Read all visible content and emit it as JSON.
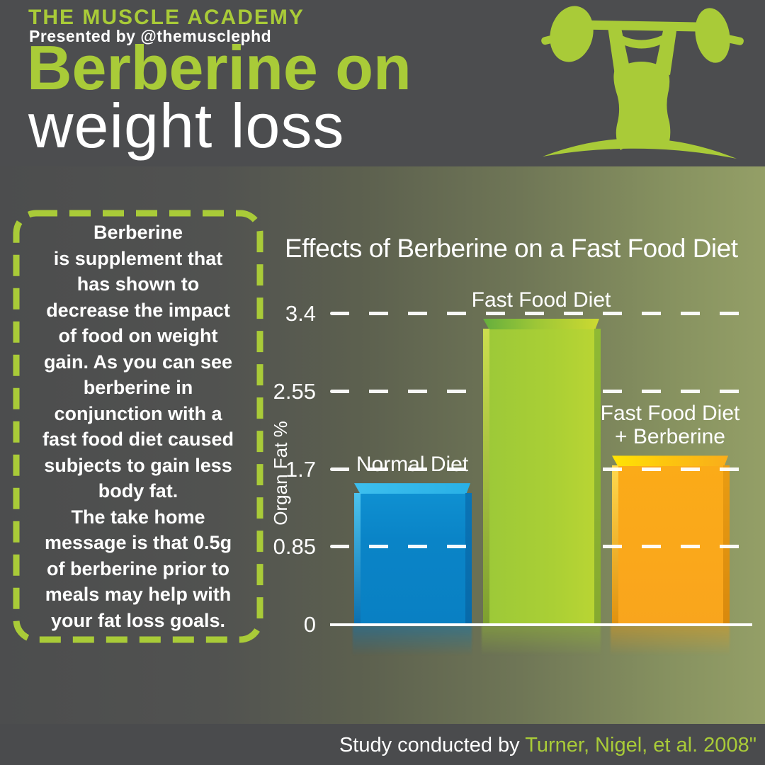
{
  "colors": {
    "accent": "#a9cb38",
    "background": "#4c4d4f",
    "panel_gradient_right": "#949f67",
    "text": "#ffffff",
    "bar_blue": "#0b85c8",
    "bar_green": "#aacf35",
    "bar_orange": "#f9a71c"
  },
  "header": {
    "brand": "THE MUSCLE ACADEMY",
    "presented_by": "Presented by @themusclephd",
    "title_line1": "Berberine on",
    "title_line2": "weight loss",
    "logo_icon": "weightlifter-icon"
  },
  "info_box": {
    "body": "Berberine\nis supplement that\nhas shown to\ndecrease the impact\nof food on weight\ngain. As you can see\nberberine in\nconjunction with a\nfast food diet caused\nsubjects to gain less\nbody fat.\nThe take home\nmessage is that 0.5g\nof berberine prior to\nmeals may help with\nyour fat loss goals."
  },
  "chart_data": {
    "type": "bar",
    "title": "Effects of Berberine on a Fast Food Diet",
    "xlabel": "",
    "ylabel": "Organ Fat %",
    "categories": [
      "Normal Diet",
      "Fast Food Diet",
      "Fast Food Diet\n+ Berberine"
    ],
    "values": [
      1.55,
      3.35,
      1.85
    ],
    "bar_colors": [
      "#0b85c8",
      "#aacf35",
      "#f9a71c"
    ],
    "yticks": [
      0,
      0.85,
      1.7,
      2.55,
      3.4
    ],
    "ylim": [
      0,
      3.6
    ],
    "grid": "dashed-horizontal-white",
    "legend": "none"
  },
  "footer": {
    "prefix": "Study conducted by ",
    "citation": "Turner, Nigel, et al. 2008\""
  }
}
